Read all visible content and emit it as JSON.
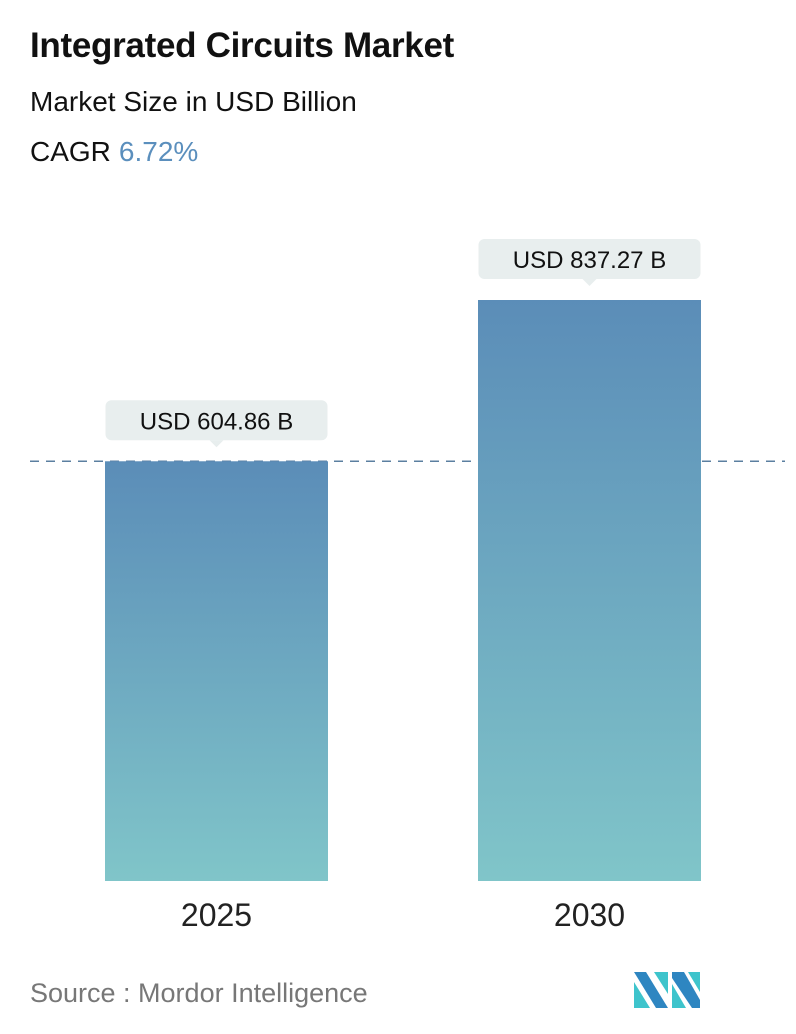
{
  "header": {
    "title": "Integrated Circuits Market",
    "subtitle": "Market Size in USD Billion",
    "cagr_label": "CAGR",
    "cagr_value": "6.72%"
  },
  "colors": {
    "accent": "#5b8fbd",
    "bar_top": "#5b8db8",
    "bar_bottom": "#80c5c9",
    "label_bg": "#e8eeee",
    "dashed_line": "#5b7fa0"
  },
  "chart_data": {
    "type": "bar",
    "title": "Integrated Circuits Market",
    "subtitle": "Market Size in USD Billion",
    "categories": [
      "2025",
      "2030"
    ],
    "values": [
      604.86,
      837.27
    ],
    "data_labels": [
      "USD 604.86 B",
      "USD 837.27 B"
    ],
    "reference_line": {
      "value": 604.86,
      "style": "dashed"
    },
    "grid": false,
    "legend": "none"
  },
  "footer": {
    "source": "Source :  Mordor Intelligence",
    "logo_text": "Mordor Intelligence"
  }
}
